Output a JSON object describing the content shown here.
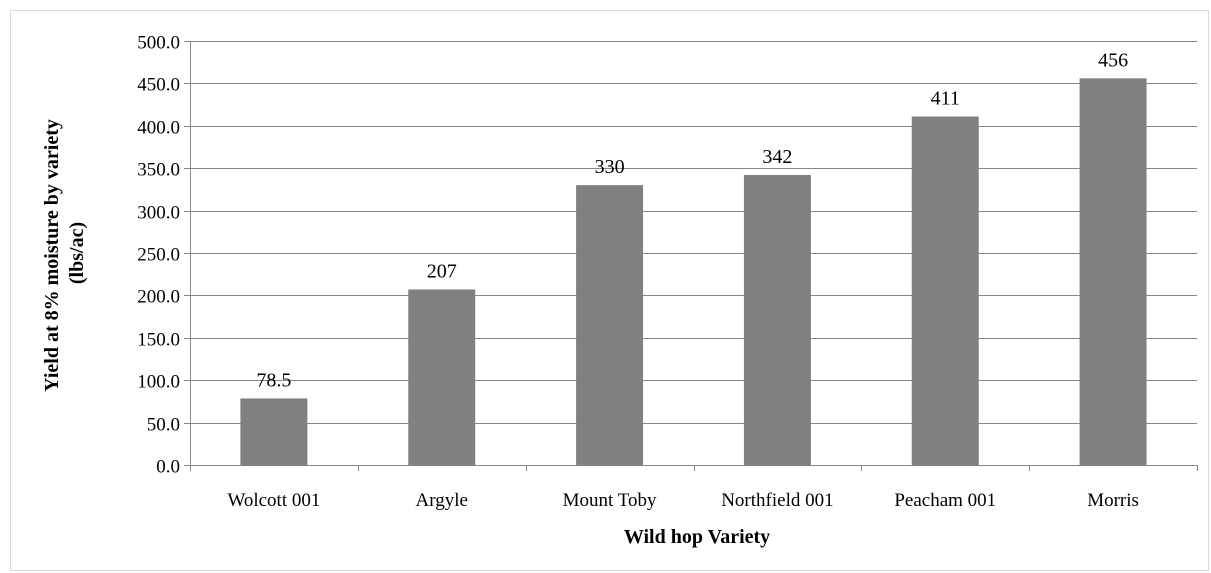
{
  "chart_data": {
    "type": "bar",
    "categories": [
      "Wolcott 001",
      "Argyle",
      "Mount Toby",
      "Northfield 001",
      "Peacham 001",
      "Morris"
    ],
    "values": [
      78.5,
      207,
      330,
      342,
      411,
      456
    ],
    "data_labels": [
      "78.5",
      "207",
      "330",
      "342",
      "411",
      "456"
    ],
    "title": "",
    "xlabel": "Wild hop Variety",
    "ylabel": "Yield at 8% moisture by variety (lbs/ac)",
    "ylabel_lines": [
      "Yield at 8% moisture by variety",
      "(lbs/ac)"
    ],
    "ylim": [
      0,
      500
    ],
    "y_ticks": [
      {
        "value": 0,
        "label": "0.0"
      },
      {
        "value": 50,
        "label": "50.0"
      },
      {
        "value": 100,
        "label": "100.0"
      },
      {
        "value": 150,
        "label": "150.0"
      },
      {
        "value": 200,
        "label": "200.0"
      },
      {
        "value": 250,
        "label": "250.0"
      },
      {
        "value": 300,
        "label": "300.0"
      },
      {
        "value": 350,
        "label": "350.0"
      },
      {
        "value": 400,
        "label": "400.0"
      },
      {
        "value": 450,
        "label": "450.0"
      },
      {
        "value": 500,
        "label": "500.0"
      }
    ],
    "grid": true,
    "legend": "none",
    "colors": {
      "bar": "#808080",
      "grid": "#868686",
      "axis": "#868686"
    }
  }
}
